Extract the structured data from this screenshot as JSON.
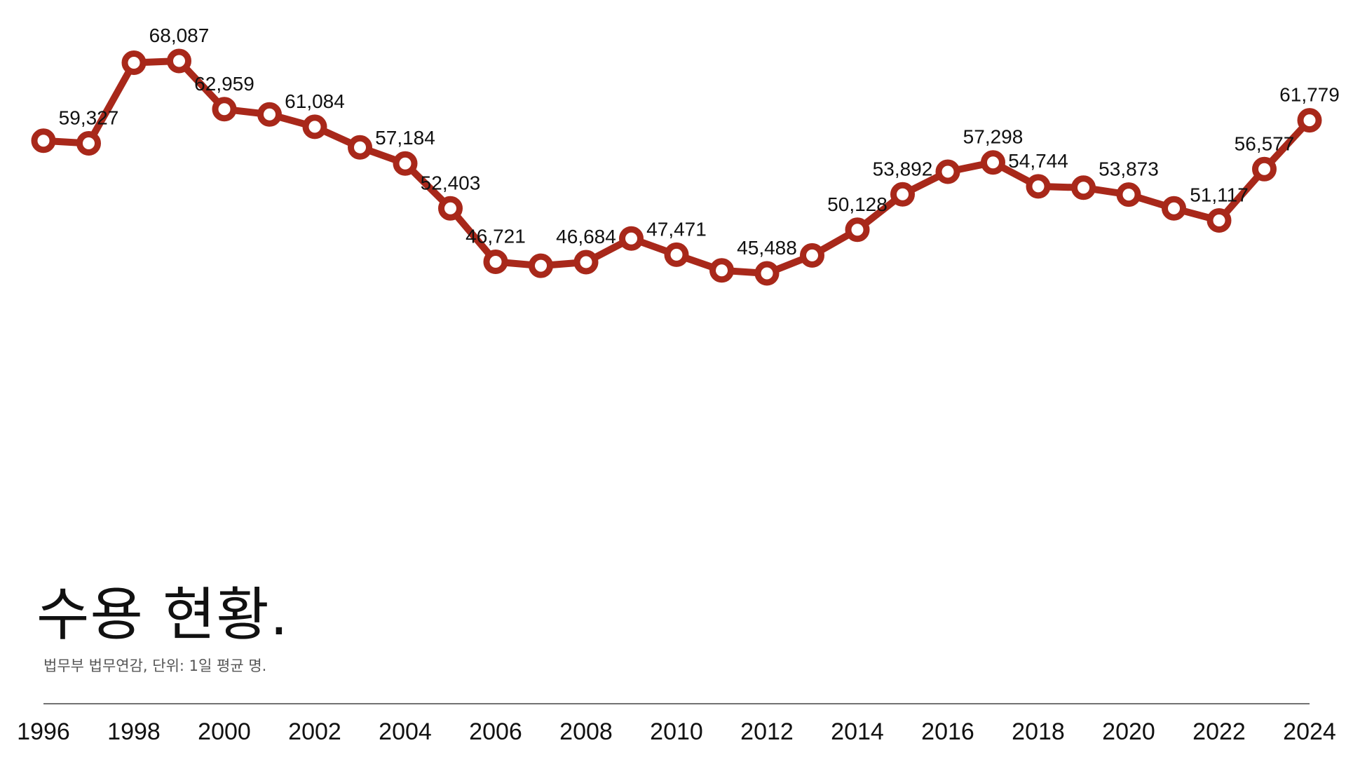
{
  "title": "수용 현황.",
  "source": "법무부 법무연감, 단위: 1일 평균 명.",
  "colors": {
    "line": "#A8281A",
    "marker_fill": "#ffffff",
    "axis": "#444444",
    "text": "#111111"
  },
  "chart_data": {
    "type": "line",
    "title": "수용 현황.",
    "xlabel": "",
    "ylabel": "",
    "x": [
      1996,
      1997,
      1998,
      1999,
      2000,
      2001,
      2002,
      2003,
      2004,
      2005,
      2006,
      2007,
      2008,
      2009,
      2010,
      2011,
      2012,
      2013,
      2014,
      2015,
      2016,
      2017,
      2018,
      2019,
      2020,
      2021,
      2022,
      2023,
      2024
    ],
    "y": [
      59600,
      59327,
      67900,
      68087,
      62959,
      62400,
      61084,
      58900,
      57184,
      52403,
      46721,
      46300,
      46684,
      49200,
      47471,
      45800,
      45488,
      47400,
      50128,
      53892,
      56300,
      57298,
      54744,
      54600,
      53873,
      52400,
      51117,
      56577,
      61779
    ],
    "data_labels": [
      "",
      "59,327",
      "",
      "68,087",
      "62,959",
      "",
      "61,084",
      "",
      "57,184",
      "52,403",
      "46,721",
      "",
      "46,684",
      "",
      "47,471",
      "",
      "45,488",
      "",
      "50,128",
      "53,892",
      "",
      "57,298",
      "54,744",
      "",
      "53,873",
      "",
      "51,117",
      "56,577",
      "61,779"
    ],
    "x_ticks": [
      "1996",
      "1998",
      "2000",
      "2002",
      "2004",
      "2006",
      "2008",
      "2010",
      "2012",
      "2014",
      "2016",
      "2018",
      "2020",
      "2022",
      "2024"
    ],
    "xlim": [
      1996,
      2024
    ],
    "ylim": [
      45000,
      68500
    ],
    "grid": false,
    "legend": "none",
    "markers": "hollow circles"
  }
}
